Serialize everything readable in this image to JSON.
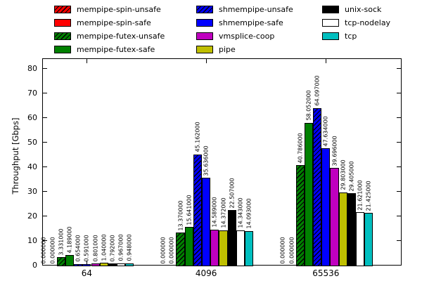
{
  "chart_data": {
    "type": "bar",
    "title": "",
    "xlabel": "",
    "ylabel": "Throughput [Gbps]",
    "ylim": [
      0,
      84
    ],
    "yticks": [
      0,
      10,
      20,
      30,
      40,
      50,
      60,
      70,
      80
    ],
    "categories": [
      "64",
      "4096",
      "65536"
    ],
    "grid": false,
    "legend_position": "top",
    "bar_value_label_decimals": 6,
    "edge_color": "#000000",
    "series": [
      {
        "name": "mempipe-spin-unsafe",
        "color": "#ff0000",
        "hatch": true,
        "values": [
          0.0,
          0.0,
          0.0
        ]
      },
      {
        "name": "mempipe-spin-safe",
        "color": "#ff0000",
        "hatch": false,
        "values": [
          0.0,
          0.0,
          0.0
        ]
      },
      {
        "name": "mempipe-futex-unsafe",
        "color": "#008000",
        "hatch": true,
        "values": [
          3.331,
          13.37,
          40.786
        ]
      },
      {
        "name": "mempipe-futex-safe",
        "color": "#008000",
        "hatch": false,
        "values": [
          4.189,
          15.641,
          58.052
        ]
      },
      {
        "name": "shmempipe-unsafe",
        "color": "#0000ff",
        "hatch": true,
        "values": [
          0.654,
          45.162,
          64.097
        ]
      },
      {
        "name": "shmempipe-safe",
        "color": "#0000ff",
        "hatch": false,
        "values": [
          0.591,
          35.636,
          47.634
        ]
      },
      {
        "name": "vmsplice-coop",
        "color": "#bf00bf",
        "hatch": false,
        "values": [
          0.801,
          14.589,
          39.696
        ]
      },
      {
        "name": "pipe",
        "color": "#bfbf00",
        "hatch": false,
        "values": [
          1.04,
          14.372,
          29.803
        ]
      },
      {
        "name": "unix-sock",
        "color": "#000000",
        "hatch": false,
        "values": [
          0.792,
          22.507,
          29.405
        ]
      },
      {
        "name": "tcp-nodelay",
        "color": "#ffffff",
        "hatch": false,
        "values": [
          0.967,
          14.343,
          21.621
        ]
      },
      {
        "name": "tcp",
        "color": "#00bfbf",
        "hatch": false,
        "values": [
          0.948,
          14.093,
          21.425
        ]
      }
    ]
  }
}
